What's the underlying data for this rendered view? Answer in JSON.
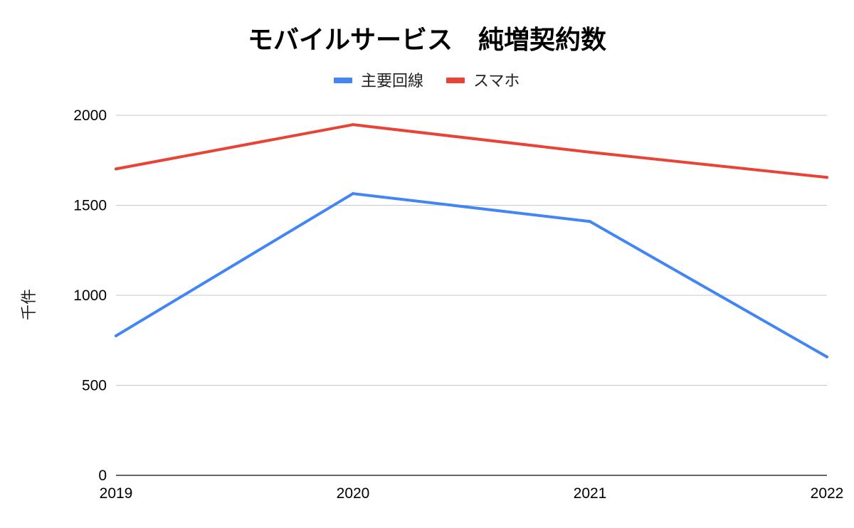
{
  "chart_data": {
    "type": "line",
    "title": "モバイルサービス　純増契約数",
    "xlabel": "",
    "ylabel": "千件",
    "categories": [
      "2019",
      "2020",
      "2021",
      "2022"
    ],
    "ylim": [
      0,
      2000
    ],
    "yticks": [
      0,
      500,
      1000,
      1500,
      2000
    ],
    "grid": true,
    "legend_position": "top-center",
    "series": [
      {
        "name": "主要回線",
        "color": "#4285f4",
        "values": [
          775,
          1565,
          1410,
          658
        ]
      },
      {
        "name": "スマホ",
        "color": "#e94335",
        "values": [
          1702,
          1948,
          1795,
          1655
        ]
      }
    ]
  }
}
